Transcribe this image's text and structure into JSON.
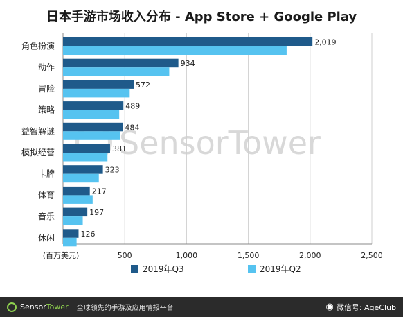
{
  "chart_data": {
    "type": "bar",
    "orientation": "horizontal",
    "title": "日本手游市场收入分布 - App Store + Google Play",
    "categories": [
      "角色扮演",
      "动作",
      "冒险",
      "策略",
      "益智解谜",
      "模拟经营",
      "卡牌",
      "体育",
      "音乐",
      "休闲"
    ],
    "series": [
      {
        "name": "2019年Q3",
        "color": "#1f5a8a",
        "values": [
          2019,
          934,
          572,
          489,
          484,
          381,
          323,
          217,
          197,
          126
        ],
        "labeled": true
      },
      {
        "name": "2019年Q2",
        "color": "#56c3f0",
        "values": [
          1810,
          860,
          540,
          455,
          465,
          360,
          290,
          240,
          160,
          110
        ],
        "labeled": false
      }
    ],
    "value_labels": [
      "2,019",
      "934",
      "572",
      "489",
      "484",
      "381",
      "323",
      "217",
      "197",
      "126"
    ],
    "xlim": [
      0,
      2500
    ],
    "xticks": [
      0,
      500,
      1000,
      1500,
      2000,
      2500
    ],
    "xtick_labels": [
      "",
      "500",
      "1,000",
      "1,500",
      "2,000",
      "2,500"
    ],
    "xlabel": "(百万美元)",
    "grid": "vertical",
    "legend_position": "bottom"
  },
  "watermark": "SensorTower",
  "footer": {
    "brand_part1": "Sensor",
    "brand_part2": "Tower",
    "tagline": "全球领先的手游及应用情报平台",
    "wechat": "微信号: AgeClub"
  }
}
